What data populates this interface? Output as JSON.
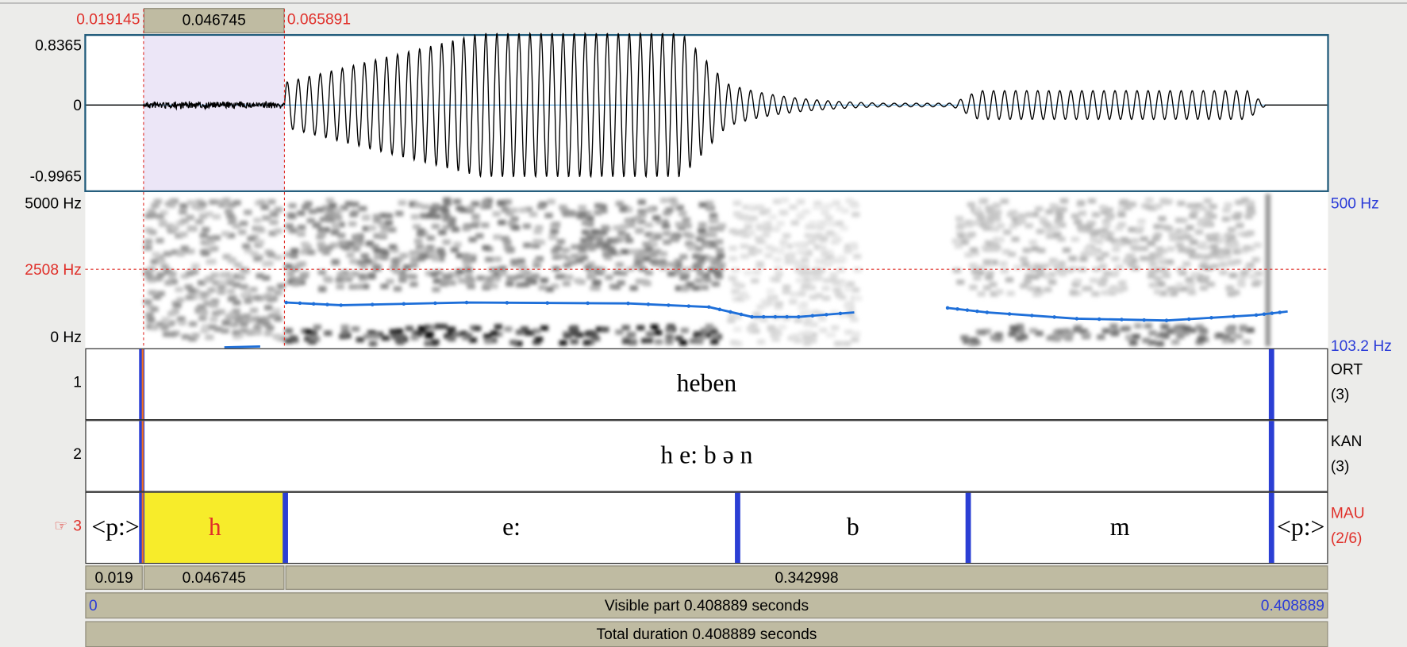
{
  "selection": {
    "start": "0.019145",
    "duration": "0.046745",
    "end": "0.065891"
  },
  "waveform": {
    "max": "0.8365",
    "zero": "0",
    "min": "-0.9965"
  },
  "spectrogram": {
    "top": "5000 Hz",
    "cursor": "2508 Hz",
    "bottom": "0 Hz",
    "pitch_top": "500 Hz",
    "pitch_bottom": "103.2 Hz"
  },
  "tiers": [
    {
      "number": "1",
      "name": "ORT",
      "count": "(3)",
      "intervals": [
        "heben"
      ]
    },
    {
      "number": "2",
      "name": "KAN",
      "count": "(3)",
      "intervals": [
        "h e: b ə n"
      ]
    },
    {
      "marker": "☞",
      "number": "3",
      "name": "MAU",
      "count": "(2/6)",
      "intervals": [
        "<p:>",
        "h",
        "e:",
        "b",
        "m",
        "<p:>"
      ]
    }
  ],
  "footer": {
    "left_segment": "0.019",
    "selected_segment": "0.046745",
    "right_segment": "0.342998",
    "visible_start": "0",
    "visible_label": "Visible part 0.408889 seconds",
    "visible_end": "0.408889",
    "total": "Total duration 0.408889 seconds"
  }
}
